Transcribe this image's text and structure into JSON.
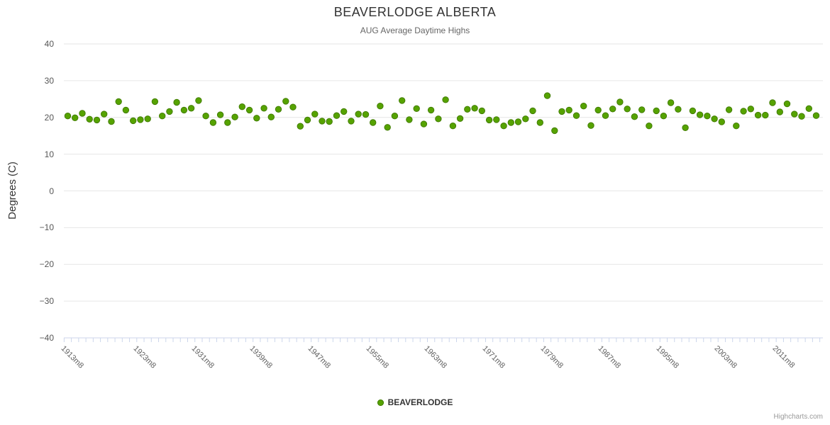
{
  "chart_data": {
    "type": "scatter",
    "title": "BEAVERLODGE ALBERTA",
    "subtitle": "AUG Average Daytime Highs",
    "ylabel": "Degrees (C)",
    "ylim": [
      -40,
      40
    ],
    "yticks": [
      40,
      30,
      20,
      10,
      0,
      -10,
      -20,
      -30,
      -40
    ],
    "grid": "horizontal-on",
    "legend_position": "bottom-center",
    "colors": {
      "point_fill": "#56a300",
      "point_stroke": "#417c00",
      "grid_line": "#e6e6e6",
      "axis_line": "#ccd6eb",
      "title_text": "#333333",
      "subtitle_text": "#666666"
    },
    "x_start_year": 1913,
    "x_label_suffix": "m8",
    "xtick_labels": [
      {
        "index": 0,
        "label": "1913m8"
      },
      {
        "index": 10,
        "label": "1923m8"
      },
      {
        "index": 18,
        "label": "1931m8"
      },
      {
        "index": 26,
        "label": "1939m8"
      },
      {
        "index": 34,
        "label": "1947m8"
      },
      {
        "index": 42,
        "label": "1955m8"
      },
      {
        "index": 50,
        "label": "1963m8"
      },
      {
        "index": 58,
        "label": "1971m8"
      },
      {
        "index": 66,
        "label": "1979m8"
      },
      {
        "index": 74,
        "label": "1987m8"
      },
      {
        "index": 82,
        "label": "1995m8"
      },
      {
        "index": 90,
        "label": "2003m8"
      },
      {
        "index": 98,
        "label": "2011m8"
      }
    ],
    "series": [
      {
        "name": "BEAVERLODGE",
        "values": [
          20.4,
          19.9,
          21.1,
          19.5,
          19.3,
          20.9,
          18.9,
          24.3,
          22.0,
          19.1,
          19.4,
          19.6,
          24.3,
          20.4,
          21.6,
          24.1,
          22.0,
          22.5,
          24.6,
          20.4,
          18.6,
          20.7,
          18.6,
          20.1,
          22.9,
          22.0,
          19.8,
          22.5,
          20.1,
          22.2,
          24.4,
          22.8,
          17.6,
          19.3,
          20.9,
          19.0,
          18.9,
          20.5,
          21.6,
          19.0,
          20.9,
          20.8,
          18.6,
          23.1,
          17.3,
          20.4,
          24.6,
          19.4,
          22.4,
          18.2,
          22.0,
          19.6,
          24.8,
          17.7,
          19.7,
          22.2,
          22.5,
          21.8,
          19.3,
          19.4,
          17.7,
          18.6,
          18.8,
          19.6,
          21.8,
          18.6,
          25.9,
          16.4,
          21.6,
          22.0,
          20.5,
          23.1,
          17.8,
          22.0,
          20.5,
          22.3,
          24.2,
          22.3,
          20.2,
          22.1,
          17.7,
          21.8,
          20.4,
          24.0,
          22.2,
          17.2,
          21.8,
          20.7,
          20.4,
          19.6,
          18.8,
          22.1,
          17.7,
          21.7,
          22.3,
          20.6,
          20.6,
          24.0,
          21.5,
          23.7,
          20.9,
          20.3,
          22.4,
          20.5
        ]
      }
    ]
  },
  "credits": "Highcharts.com"
}
